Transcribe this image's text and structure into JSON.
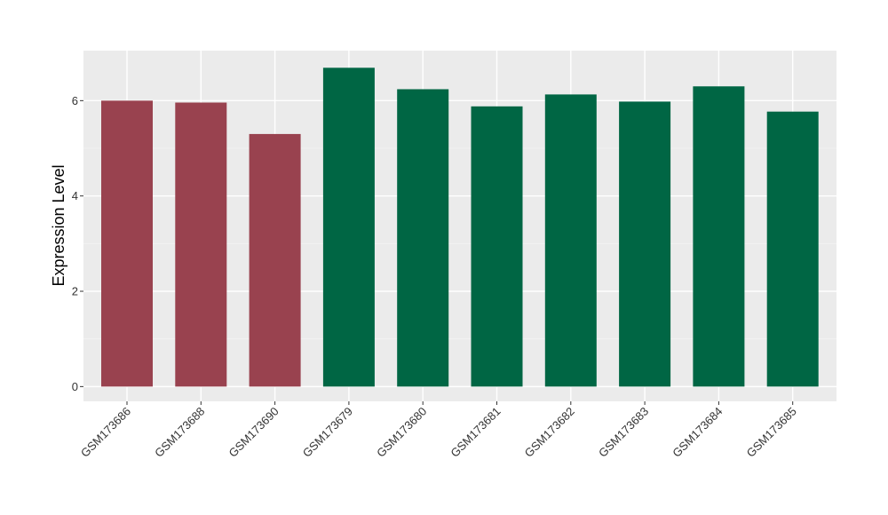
{
  "chart_data": {
    "type": "bar",
    "title": "",
    "xlabel": "",
    "ylabel": "Expression Level",
    "categories": [
      "GSM173686",
      "GSM173688",
      "GSM173690",
      "GSM173679",
      "GSM173680",
      "GSM173681",
      "GSM173682",
      "GSM173683",
      "GSM173684",
      "GSM173685"
    ],
    "values": [
      6.0,
      5.96,
      5.3,
      6.69,
      6.24,
      5.88,
      6.13,
      5.98,
      6.3,
      5.77
    ],
    "groups": [
      1,
      1,
      1,
      2,
      2,
      2,
      2,
      2,
      2,
      2
    ],
    "group_colors": {
      "1": "#99424f",
      "2": "#006644"
    },
    "ylim": [
      -0.31,
      7.05
    ],
    "yticks": [
      0,
      2,
      4,
      6
    ],
    "grid": true,
    "legend": "none",
    "panel_background": "#ebebeb"
  }
}
